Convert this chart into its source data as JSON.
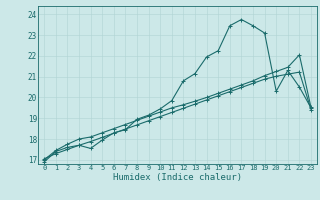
{
  "xlabel": "Humidex (Indice chaleur)",
  "xlim": [
    -0.5,
    23.5
  ],
  "ylim": [
    16.8,
    24.4
  ],
  "xticks": [
    0,
    1,
    2,
    3,
    4,
    5,
    6,
    7,
    8,
    9,
    10,
    11,
    12,
    13,
    14,
    15,
    16,
    17,
    18,
    19,
    20,
    21,
    22,
    23
  ],
  "yticks": [
    17,
    18,
    19,
    20,
    21,
    22,
    23,
    24
  ],
  "bg_color": "#cce8e8",
  "line_color": "#1a6b6b",
  "grid_color": "#b0d4d4",
  "line1_y": [
    16.9,
    17.4,
    17.6,
    17.7,
    17.55,
    17.95,
    18.3,
    18.45,
    18.95,
    19.15,
    19.45,
    19.85,
    20.8,
    21.15,
    21.95,
    22.25,
    23.45,
    23.75,
    23.45,
    23.1,
    20.3,
    21.3,
    20.5,
    19.5
  ],
  "line2_y": [
    17.0,
    17.45,
    17.75,
    18.0,
    18.1,
    18.3,
    18.5,
    18.7,
    18.9,
    19.1,
    19.3,
    19.5,
    19.65,
    19.82,
    20.0,
    20.2,
    20.4,
    20.6,
    20.8,
    21.05,
    21.25,
    21.45,
    22.05,
    19.52
  ],
  "line3_y": [
    17.05,
    17.3,
    17.5,
    17.7,
    17.88,
    18.08,
    18.28,
    18.48,
    18.68,
    18.88,
    19.08,
    19.28,
    19.48,
    19.68,
    19.88,
    20.08,
    20.28,
    20.48,
    20.68,
    20.88,
    21.02,
    21.12,
    21.22,
    19.42
  ],
  "markersize": 3.5,
  "linewidth": 0.8
}
